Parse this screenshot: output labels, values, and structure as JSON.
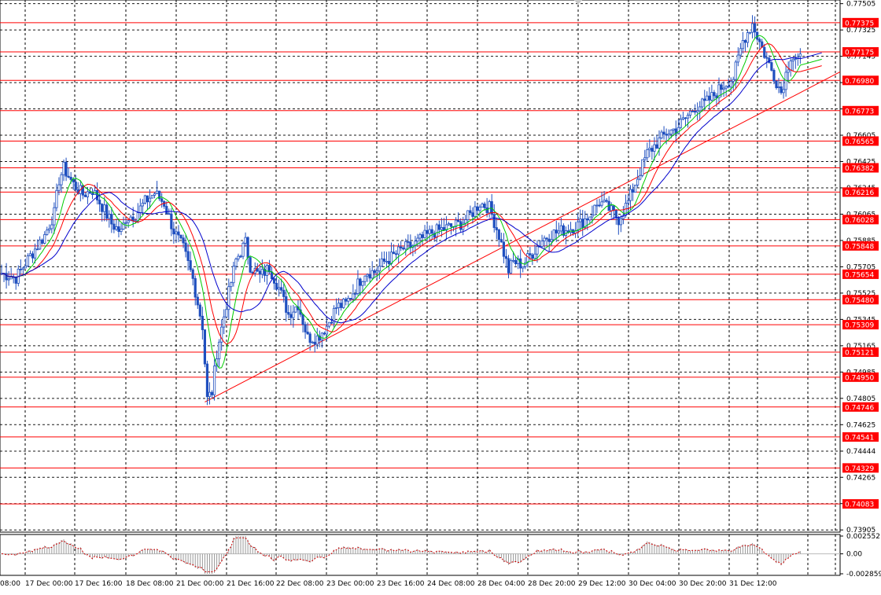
{
  "chart_data": {
    "type": "candlestick",
    "price_axis": {
      "min": 0.7389,
      "max": 0.7753,
      "tick_labels": [
        "0.77505",
        "0.77325",
        "0.77145",
        "0.76965",
        "0.76785",
        "0.76605",
        "0.76425",
        "0.76245",
        "0.76065",
        "0.75885",
        "0.75705",
        "0.75525",
        "0.75345",
        "0.75165",
        "0.74985",
        "0.74805",
        "0.74625",
        "0.74444",
        "0.74265",
        "0.74085",
        "0.73905"
      ]
    },
    "time_axis": {
      "labels": [
        "08:00",
        "17 Dec 00:00",
        "17 Dec 16:00",
        "18 Dec 08:00",
        "21 Dec 00:00",
        "21 Dec 16:00",
        "22 Dec 08:00",
        "23 Dec 00:00",
        "23 Dec 16:00",
        "24 Dec 08:00",
        "28 Dec 04:00",
        "28 Dec 20:00",
        "29 Dec 12:00",
        "30 Dec 04:00",
        "30 Dec 20:00",
        "31 Dec 12:00"
      ]
    },
    "grid": true,
    "level_lines": {
      "color": "#ff0000",
      "prices": [
        "0.77375",
        "0.77175",
        "0.76980",
        "0.76773",
        "0.76565",
        "0.76382",
        "0.76216",
        "0.76028",
        "0.75848",
        "0.75654",
        "0.75480",
        "0.75309",
        "0.75121",
        "0.74950",
        "0.74746",
        "0.74541",
        "0.74329",
        "0.74083"
      ]
    },
    "trendline": {
      "color": "#ff0000",
      "from": {
        "bar": 85,
        "price": 0.7478
      },
      "to": {
        "bar": 345,
        "price": 0.7699
      }
    },
    "moving_averages": [
      {
        "color": "#00cc00",
        "period": 8
      },
      {
        "color": "#ff0000",
        "period": 14
      },
      {
        "color": "#0000cc",
        "period": 24
      }
    ],
    "candle_color": "#1f4fbf",
    "close_path": [
      [
        0,
        0.7566
      ],
      [
        6,
        0.7563
      ],
      [
        12,
        0.7578
      ],
      [
        18,
        0.7592
      ],
      [
        22,
        0.7607
      ],
      [
        24,
        0.763
      ],
      [
        26,
        0.7638
      ],
      [
        30,
        0.7627
      ],
      [
        34,
        0.762
      ],
      [
        38,
        0.7623
      ],
      [
        42,
        0.7612
      ],
      [
        46,
        0.76
      ],
      [
        50,
        0.7594
      ],
      [
        52,
        0.7604
      ],
      [
        56,
        0.7606
      ],
      [
        60,
        0.7615
      ],
      [
        64,
        0.7621
      ],
      [
        68,
        0.7614
      ],
      [
        72,
        0.7595
      ],
      [
        76,
        0.7583
      ],
      [
        80,
        0.7562
      ],
      [
        84,
        0.753
      ],
      [
        86,
        0.748
      ],
      [
        88,
        0.7485
      ],
      [
        90,
        0.7512
      ],
      [
        94,
        0.7545
      ],
      [
        98,
        0.7575
      ],
      [
        102,
        0.7587
      ],
      [
        104,
        0.7571
      ],
      [
        108,
        0.7564
      ],
      [
        112,
        0.757
      ],
      [
        116,
        0.7556
      ],
      [
        120,
        0.7538
      ],
      [
        124,
        0.7545
      ],
      [
        128,
        0.7522
      ],
      [
        132,
        0.7522
      ],
      [
        136,
        0.753
      ],
      [
        140,
        0.7543
      ],
      [
        144,
        0.7545
      ],
      [
        148,
        0.7556
      ],
      [
        152,
        0.7567
      ],
      [
        156,
        0.7567
      ],
      [
        160,
        0.7574
      ],
      [
        164,
        0.7578
      ],
      [
        168,
        0.7583
      ],
      [
        172,
        0.7585
      ],
      [
        176,
        0.759
      ],
      [
        180,
        0.7594
      ],
      [
        184,
        0.7596
      ],
      [
        188,
        0.7598
      ],
      [
        192,
        0.76
      ],
      [
        196,
        0.7606
      ],
      [
        200,
        0.7614
      ],
      [
        204,
        0.7611
      ],
      [
        208,
        0.7592
      ],
      [
        212,
        0.7568
      ],
      [
        214,
        0.7574
      ],
      [
        218,
        0.7572
      ],
      [
        222,
        0.758
      ],
      [
        226,
        0.7589
      ],
      [
        230,
        0.7593
      ],
      [
        234,
        0.7595
      ],
      [
        238,
        0.7597
      ],
      [
        242,
        0.76
      ],
      [
        246,
        0.7606
      ],
      [
        250,
        0.7615
      ],
      [
        254,
        0.761
      ],
      [
        258,
        0.7603
      ],
      [
        262,
        0.7615
      ],
      [
        266,
        0.7632
      ],
      [
        270,
        0.7648
      ],
      [
        274,
        0.7655
      ],
      [
        278,
        0.7662
      ],
      [
        282,
        0.7665
      ],
      [
        286,
        0.7672
      ],
      [
        290,
        0.768
      ],
      [
        294,
        0.7682
      ],
      [
        298,
        0.7688
      ],
      [
        302,
        0.7695
      ],
      [
        306,
        0.77
      ],
      [
        310,
        0.7725
      ],
      [
        314,
        0.7737
      ],
      [
        318,
        0.772
      ],
      [
        322,
        0.7705
      ],
      [
        326,
        0.769
      ],
      [
        330,
        0.7715
      ],
      [
        334,
        0.7712
      ]
    ],
    "volatility": [
      0.14,
      0.12,
      0.1
    ],
    "indicator": {
      "type": "histogram",
      "series_color": "#999999",
      "signal_color": "#cc0000",
      "ticks": [
        "0.002552",
        "0.00",
        "-0.002859"
      ],
      "range": [
        -0.002859,
        0.002552
      ]
    }
  }
}
